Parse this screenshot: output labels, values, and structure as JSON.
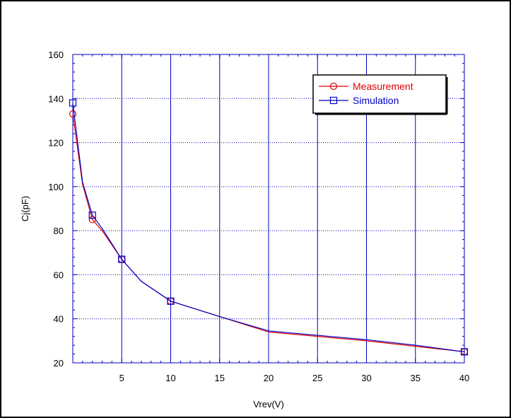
{
  "chart_data": {
    "type": "line",
    "title": "",
    "xlabel": "Vrev(V)",
    "ylabel": "Cj(pF)",
    "xlim": [
      0,
      40
    ],
    "ylim": [
      20,
      160
    ],
    "x_ticks": [
      5,
      10,
      15,
      20,
      25,
      30,
      35,
      40
    ],
    "y_ticks": [
      20,
      40,
      60,
      80,
      100,
      120,
      140,
      160
    ],
    "x_tick_labels": [
      "5",
      "10",
      "15",
      "20",
      "25",
      "30",
      "35",
      "40"
    ],
    "y_tick_labels": [
      "20",
      "40",
      "60",
      "80",
      "100",
      "120",
      "140",
      "160"
    ],
    "grid": true,
    "legend_position": "top-right",
    "series": [
      {
        "name": "Measurement",
        "color": "#e00000",
        "marker": "circle",
        "x": [
          0,
          1,
          2,
          3,
          5,
          7,
          10,
          15,
          20,
          25,
          30,
          35,
          40
        ],
        "y": [
          133,
          101,
          85,
          80,
          67,
          57,
          48,
          41,
          34,
          32,
          30,
          27.5,
          25
        ],
        "marker_indices": [
          0,
          2,
          4,
          6,
          12
        ]
      },
      {
        "name": "Simulation",
        "color": "#0000c8",
        "marker": "square",
        "x": [
          0,
          1,
          2,
          3,
          5,
          7,
          10,
          15,
          20,
          25,
          30,
          35,
          40
        ],
        "y": [
          138,
          102,
          87,
          81,
          67,
          57,
          48,
          41,
          34.5,
          32.5,
          30.5,
          28,
          25
        ],
        "marker_indices": [
          0,
          2,
          4,
          6,
          12
        ]
      }
    ]
  }
}
